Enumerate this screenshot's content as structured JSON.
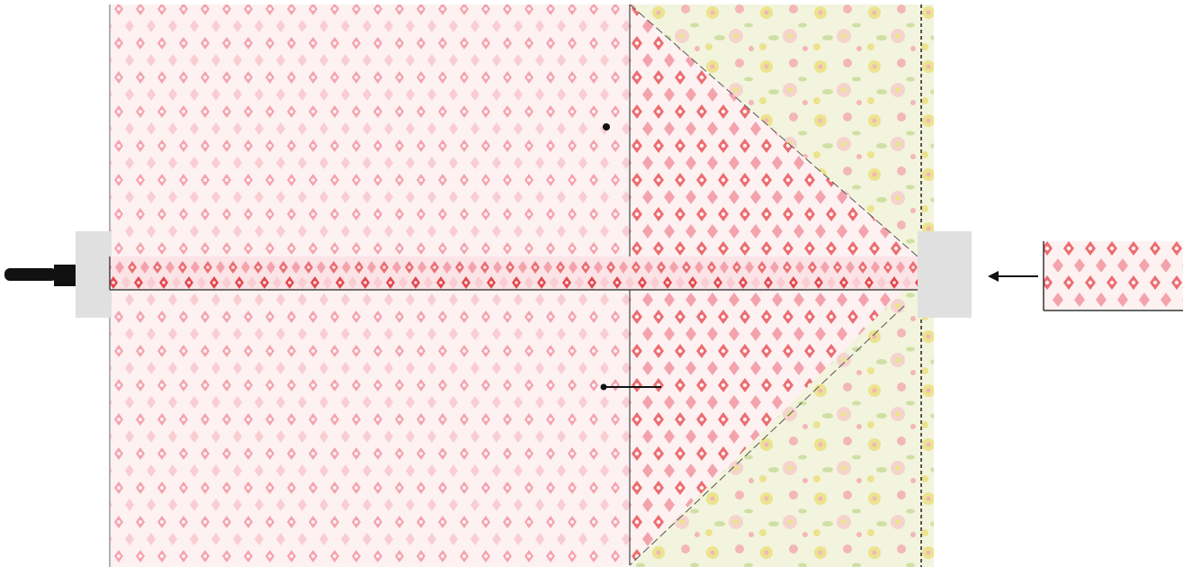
{
  "figure": {
    "description_free": true,
    "colors": {
      "background": "#ffffff",
      "diamond_fabric_bg": "#fdf1f2",
      "diamond_light": "#f9cdd3",
      "diamond_mid": "#f4a3ad",
      "diamond_dark": "#ec6d70",
      "diamond_strong": "#e3474d",
      "floral_bg": "#f3f4dd",
      "floral_yellow": "#ece38e",
      "floral_pink": "#f3b6b9",
      "floral_green": "#cfe0a5",
      "ruler_gray": "#e0e0e0",
      "ruler_ticks": "#9a9a9a",
      "seam_line": "#333333",
      "clamp_black": "#111111"
    },
    "parts": {
      "left_fabric_panel": "diamond-print",
      "triangle_panel": "diamond-print",
      "background_panel": "floral-print",
      "center_strip": "diamond-print",
      "inset_swatch": "diamond-print"
    },
    "icons": {
      "clamp": "clamp-icon",
      "pointer_arrow": "left-arrow-icon",
      "marker_dot": "dot-icon",
      "leader_line": "leader-line-icon"
    }
  }
}
